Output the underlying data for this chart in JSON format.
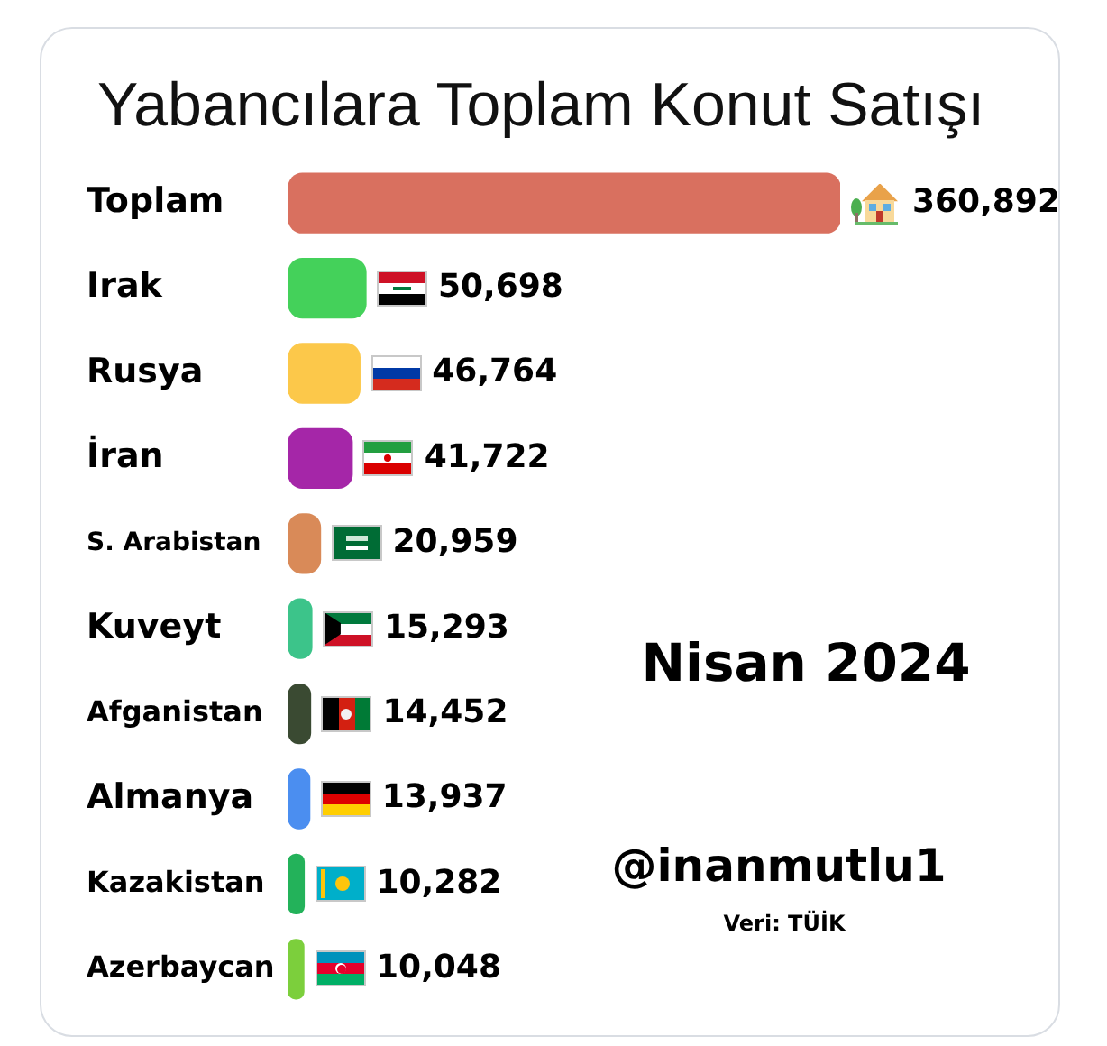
{
  "chart_data": {
    "type": "bar",
    "orientation": "horizontal",
    "title": "Yabancılara Toplam Konut Satışı",
    "categories": [
      "Toplam",
      "Irak",
      "Rusya",
      "İran",
      "S. Arabistan",
      "Kuveyt",
      "Afganistan",
      "Almanya",
      "Kazakistan",
      "Azerbaycan"
    ],
    "values": [
      360892,
      50698,
      46764,
      41722,
      20959,
      15293,
      14452,
      13937,
      10282,
      10048
    ],
    "value_labels": [
      "360,892",
      "50,698",
      "46,764",
      "41,722",
      "20,959",
      "15,293",
      "14,452",
      "13,937",
      "10,282",
      "10,048"
    ],
    "colors": [
      "#d9705f",
      "#44d15a",
      "#fcc84a",
      "#a526a8",
      "#d98a58",
      "#3cc48a",
      "#3a4a32",
      "#4b8ef0",
      "#23b25a",
      "#7ccf3c"
    ],
    "tick_labels": "y",
    "annotations": [
      "Nisan 2024",
      "@inanmutlu1",
      "Veri: TÜİK"
    ]
  }
}
